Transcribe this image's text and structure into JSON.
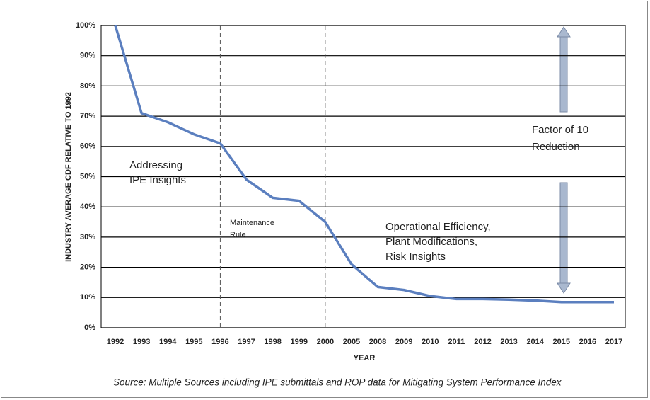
{
  "chart_data": {
    "type": "line",
    "x_label": "YEAR",
    "y_label": "INDUSTRY AVERAGE CDF RELATIVE TO 1992",
    "categories": [
      "1992",
      "1993",
      "1994",
      "1995",
      "1996",
      "1997",
      "1998",
      "1999",
      "2000",
      "2005",
      "2008",
      "2009",
      "2010",
      "2011",
      "2012",
      "2013",
      "2014",
      "2015",
      "2016",
      "2017"
    ],
    "series": [
      {
        "name": "Industry average CDF",
        "color": "#5b7fbf",
        "values": [
          100,
          71,
          68,
          64,
          61,
          49,
          43,
          42,
          35,
          21,
          13.5,
          12.5,
          10.5,
          9.5,
          9.5,
          9.3,
          9,
          8.5,
          8.5,
          8.5
        ]
      }
    ],
    "ylim": [
      0,
      100
    ],
    "yticks": [
      {
        "value": 0,
        "label": "0%"
      },
      {
        "value": 10,
        "label": "10%"
      },
      {
        "value": 20,
        "label": "20%"
      },
      {
        "value": 30,
        "label": "30%"
      },
      {
        "value": 40,
        "label": "40%"
      },
      {
        "value": 50,
        "label": "50%"
      },
      {
        "value": 60,
        "label": "60%"
      },
      {
        "value": 70,
        "label": "70%"
      },
      {
        "value": 80,
        "label": "80%"
      },
      {
        "value": 90,
        "label": "90%"
      },
      {
        "value": 100,
        "label": "100%"
      }
    ],
    "grid": true,
    "reference_lines": [
      "1996",
      "2000"
    ],
    "annotations": [
      [
        "Addressing",
        "IPE Insights"
      ],
      [
        "Maintenance",
        "Rule"
      ],
      [
        "Operational Efficiency,",
        "Plant Modifications,",
        "Risk Insights"
      ],
      [
        "Factor of 10",
        "Reduction"
      ]
    ],
    "source": "Source: Multiple Sources including IPE submittals and ROP data for Mitigating System Performance Index"
  }
}
